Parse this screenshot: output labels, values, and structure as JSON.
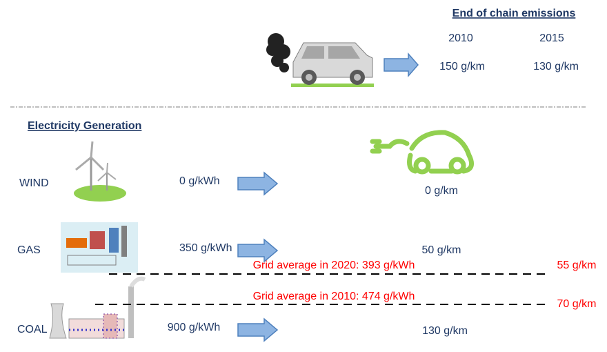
{
  "header": {
    "title": "End of chain emissions",
    "years": [
      "2010",
      "2015"
    ],
    "car_values": [
      "150 g/km",
      "130 g/km"
    ]
  },
  "section": {
    "title": "Electricity Generation"
  },
  "rows": [
    {
      "source": "WIND",
      "intensity": "0 g/kWh",
      "emission": "0 g/km"
    },
    {
      "source": "GAS",
      "intensity": "350 g/kWh",
      "emission": "50 g/km"
    },
    {
      "source": "COAL",
      "intensity": "900 g/kWh",
      "emission": "130 g/km"
    }
  ],
  "grid_lines": [
    {
      "label": "Grid average in 2020: 393 g/kWh",
      "emission": "55 g/km"
    },
    {
      "label": "Grid average in 2010: 474 g/kWh",
      "emission": "70 g/km"
    }
  ]
}
